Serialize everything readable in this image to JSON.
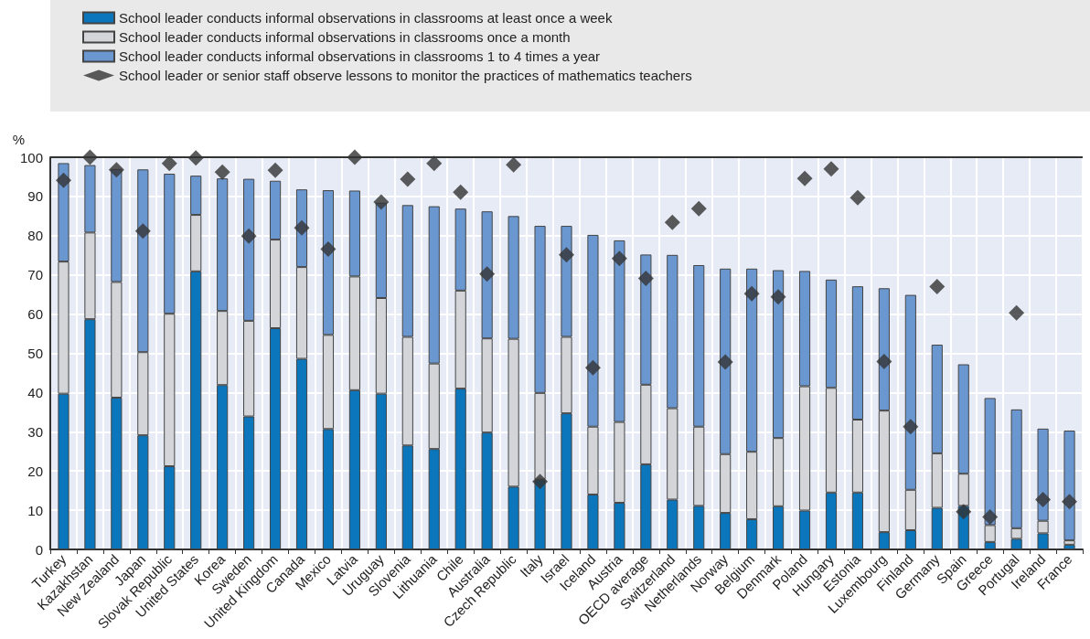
{
  "chart_data": {
    "type": "bar",
    "stacked": true,
    "ylabel": "%",
    "ylim": [
      0,
      100
    ],
    "yticks": [
      0,
      10,
      20,
      30,
      40,
      50,
      60,
      70,
      80,
      90,
      100
    ],
    "grid": true,
    "legend": "top",
    "categories": [
      "Turkey",
      "Kazakhstan",
      "New Zealand",
      "Japan",
      "Slovak Republic",
      "United States",
      "Korea",
      "Sweden",
      "United Kingdom",
      "Canada",
      "Mexico",
      "Latvia",
      "Uruguay",
      "Slovenia",
      "Lithuania",
      "Chile",
      "Australia",
      "Czech Republic",
      "Italy",
      "Israel",
      "Iceland",
      "Austria",
      "OECD average",
      "Switzerland",
      "Netherlands",
      "Norway",
      "Belgium",
      "Denmark",
      "Poland",
      "Hungary",
      "Estonia",
      "Luxembourg",
      "Finland",
      "Germany",
      "Spain",
      "Greece",
      "Portugal",
      "Ireland",
      "France"
    ],
    "series": [
      {
        "name": "School leader conducts informal observations in classrooms at least once a week",
        "color": "#0b76bb",
        "values": [
          39.7,
          58.7,
          38.7,
          29.1,
          21.2,
          70.9,
          41.9,
          33.9,
          56.4,
          48.6,
          30.7,
          40.6,
          39.7,
          26.5,
          25.6,
          41.0,
          29.8,
          16.0,
          17.8,
          34.7,
          14.0,
          11.9,
          21.7,
          12.7,
          11.1,
          9.3,
          7.7,
          11.0,
          9.9,
          14.5,
          14.5,
          4.4,
          4.9,
          10.6,
          11.1,
          1.9,
          2.7,
          4.1,
          1.2
        ]
      },
      {
        "name": "School leader conducts informal observations in classrooms once a month",
        "color": "#d3d5d9",
        "values": [
          33.7,
          22.1,
          29.5,
          21.2,
          38.9,
          14.4,
          18.9,
          24.4,
          22.6,
          23.4,
          24.0,
          29.0,
          24.4,
          27.7,
          21.8,
          25.0,
          24.0,
          37.7,
          22.1,
          19.5,
          17.3,
          20.6,
          20.3,
          23.3,
          20.2,
          15.0,
          17.2,
          17.4,
          31.7,
          26.7,
          18.6,
          31.0,
          10.3,
          13.9,
          8.2,
          4.3,
          2.7,
          3.2,
          1.1
        ]
      },
      {
        "name": "School leader conducts informal observations in classrooms 1 to 4 times a year",
        "color": "#6b97d0",
        "values": [
          25.1,
          17.2,
          28.8,
          46.6,
          35.7,
          10.0,
          33.8,
          36.2,
          15.0,
          19.8,
          36.9,
          21.9,
          24.3,
          33.6,
          40.1,
          20.9,
          32.4,
          31.3,
          42.6,
          28.3,
          48.9,
          46.3,
          33.2,
          39.1,
          41.2,
          47.3,
          46.7,
          42.8,
          29.4,
          27.6,
          34.0,
          31.2,
          49.7,
          27.7,
          27.9,
          32.4,
          30.3,
          23.5,
          28.0
        ]
      },
      {
        "name": "School leader or senior staff observe lessons to monitor the practices of mathematics teachers",
        "type": "scatter",
        "marker": "diamond",
        "color": "#333333",
        "values": [
          94.1,
          100,
          96.8,
          81.2,
          98.4,
          99.8,
          96.2,
          79.9,
          96.7,
          82.0,
          76.6,
          100,
          88.6,
          94.4,
          98.4,
          91.1,
          70.2,
          98.1,
          17.3,
          75.1,
          46.3,
          74.2,
          69.1,
          83.4,
          86.9,
          47.8,
          65.2,
          64.4,
          94.6,
          97.0,
          89.7,
          47.9,
          31.3,
          67.0,
          9.6,
          8.3,
          60.3,
          12.7,
          12.2
        ]
      }
    ]
  }
}
